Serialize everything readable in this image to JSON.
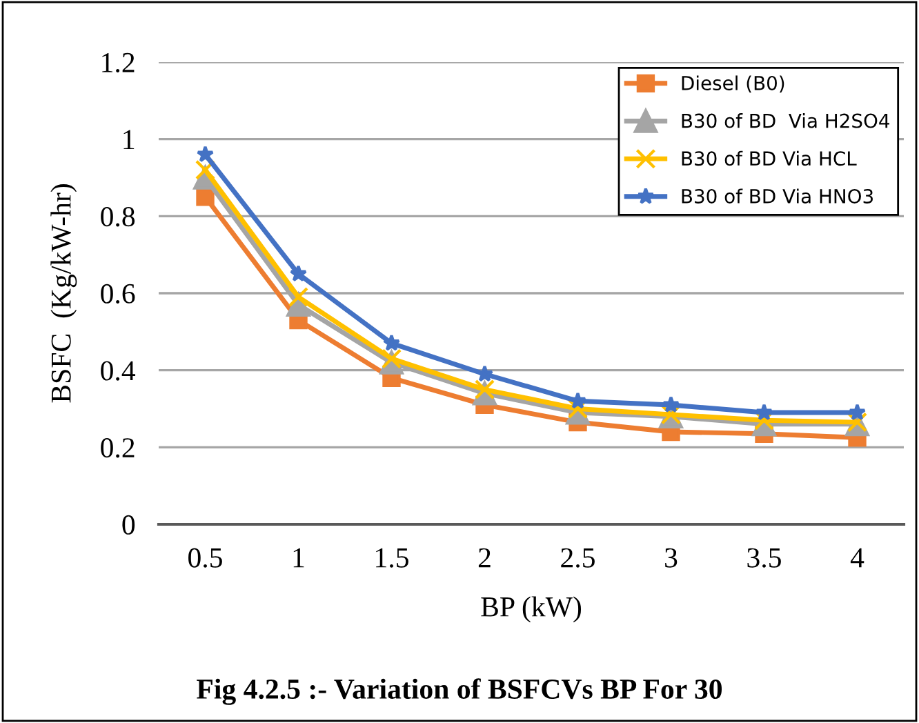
{
  "chart_data": {
    "type": "line",
    "xlabel": "BP (kW)",
    "ylabel": "BSFC  (Kg/kW-hr)",
    "categories": [
      "0.5",
      "1",
      "1.5",
      "2",
      "2.5",
      "3",
      "3.5",
      "4"
    ],
    "series": [
      {
        "name": "Diesel (B0)",
        "color": "#ed7d31",
        "marker": "square",
        "values": [
          0.85,
          0.53,
          0.38,
          0.31,
          0.265,
          0.24,
          0.235,
          0.225
        ]
      },
      {
        "name": "B30 of BD  Via H2SO4",
        "color": "#a5a5a5",
        "marker": "triangle",
        "values": [
          0.9,
          0.57,
          0.42,
          0.34,
          0.29,
          0.28,
          0.26,
          0.26
        ]
      },
      {
        "name": "B30 of BD Via HCL",
        "color": "#ffc000",
        "marker": "cross",
        "values": [
          0.92,
          0.59,
          0.43,
          0.35,
          0.3,
          0.285,
          0.27,
          0.265
        ]
      },
      {
        "name": "B30 of BD Via HNO3",
        "color": "#4472c4",
        "marker": "star",
        "values": [
          0.96,
          0.65,
          0.47,
          0.39,
          0.32,
          0.31,
          0.29,
          0.29
        ]
      }
    ],
    "ylim": [
      0,
      1.2
    ],
    "yticks": [
      0,
      0.2,
      0.4,
      0.6,
      0.8,
      1,
      1.2
    ],
    "grid": "y",
    "legend": "top right",
    "annotations": [
      "Fig 4.2.5 :- Variation of BSFCVs BP For 30"
    ]
  }
}
